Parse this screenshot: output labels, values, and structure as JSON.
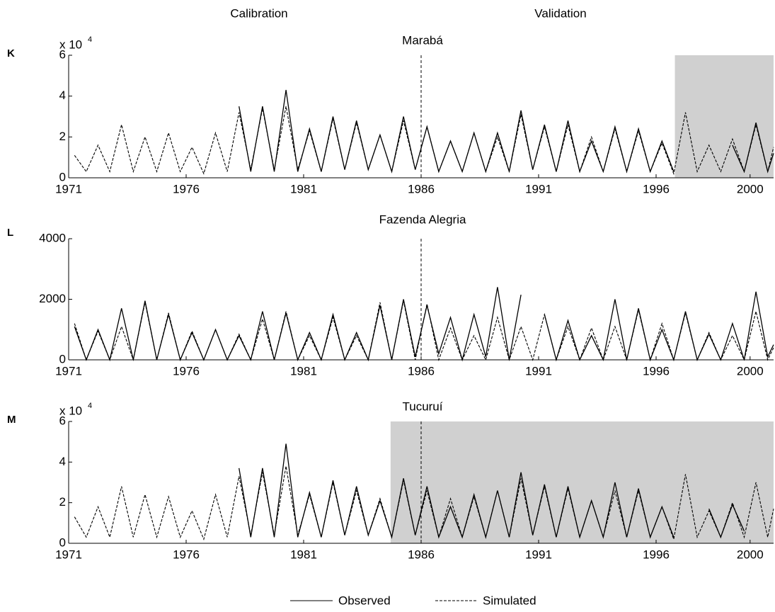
{
  "headers": [
    "Calibration",
    "Validation"
  ],
  "chart_data": [
    {
      "type": "line",
      "label": "K",
      "title": "Marabá",
      "y_scale": {
        "base": "x 10",
        "exponent": "4"
      },
      "x": [
        1971.25,
        1971.75,
        1972.25,
        1972.75,
        1973.25,
        1973.75,
        1974.25,
        1974.75,
        1975.25,
        1975.75,
        1976.25,
        1976.75,
        1977.25,
        1977.75,
        1978.25,
        1978.75,
        1979.25,
        1979.75,
        1980.25,
        1980.75,
        1981.25,
        1981.75,
        1982.25,
        1982.75,
        1983.25,
        1983.75,
        1984.25,
        1984.75,
        1985.25,
        1985.75,
        1986.25,
        1986.75,
        1987.25,
        1987.75,
        1988.25,
        1988.75,
        1989.25,
        1989.75,
        1990.25,
        1990.75,
        1991.25,
        1991.75,
        1992.25,
        1992.75,
        1993.25,
        1993.75,
        1994.25,
        1994.75,
        1995.25,
        1995.75,
        1996.25,
        1996.75,
        1997.25,
        1997.75,
        1998.25,
        1998.75,
        1999.25,
        1999.75,
        2000.25,
        2000.75,
        2001
      ],
      "series": [
        {
          "name": "Observed",
          "color": "#000000",
          "style": "solid",
          "values": [
            null,
            null,
            null,
            null,
            null,
            null,
            null,
            null,
            null,
            null,
            null,
            null,
            null,
            null,
            3.5,
            0.3,
            3.5,
            0.3,
            4.3,
            0.3,
            2.4,
            0.3,
            3.0,
            0.4,
            2.8,
            0.4,
            2.1,
            0.3,
            3.0,
            0.4,
            2.5,
            0.3,
            1.8,
            0.3,
            2.2,
            0.3,
            2.2,
            0.3,
            3.3,
            0.4,
            2.6,
            0.3,
            2.8,
            0.3,
            1.8,
            0.3,
            2.5,
            0.3,
            2.4,
            0.3,
            1.8,
            0.3,
            null,
            null,
            null,
            null,
            1.6,
            0.3,
            2.7,
            0.3,
            1.2
          ]
        },
        {
          "name": "Simulated",
          "color": "#000000",
          "style": "dashed",
          "values": [
            1.1,
            0.3,
            1.6,
            0.3,
            2.6,
            0.3,
            2.0,
            0.3,
            2.2,
            0.3,
            1.5,
            0.2,
            2.2,
            0.3,
            3.2,
            0.4,
            3.4,
            0.4,
            3.5,
            0.4,
            2.3,
            0.3,
            2.9,
            0.4,
            2.7,
            0.4,
            2.1,
            0.3,
            2.8,
            0.4,
            2.5,
            0.3,
            1.8,
            0.3,
            2.2,
            0.3,
            2.0,
            0.3,
            3.1,
            0.4,
            2.5,
            0.3,
            2.6,
            0.3,
            2.0,
            0.3,
            2.4,
            0.3,
            2.3,
            0.3,
            1.7,
            0.2,
            3.2,
            0.3,
            1.6,
            0.3,
            1.9,
            0.3,
            2.6,
            0.3,
            1.5
          ]
        }
      ],
      "xlim": [
        1971,
        2001
      ],
      "xticks": [
        1971,
        1976,
        1981,
        1986,
        1991,
        1996,
        2000
      ],
      "ylim": [
        0,
        6
      ],
      "yticks": [
        0,
        2,
        4,
        6
      ],
      "divider": 1986,
      "shaded": [
        1996.8,
        2001
      ]
    },
    {
      "type": "line",
      "label": "L",
      "title": "Fazenda Alegria",
      "x": [
        1971.25,
        1971.75,
        1972.25,
        1972.75,
        1973.25,
        1973.75,
        1974.25,
        1974.75,
        1975.25,
        1975.75,
        1976.25,
        1976.75,
        1977.25,
        1977.75,
        1978.25,
        1978.75,
        1979.25,
        1979.75,
        1980.25,
        1980.75,
        1981.25,
        1981.75,
        1982.25,
        1982.75,
        1983.25,
        1983.75,
        1984.25,
        1984.75,
        1985.25,
        1985.75,
        1986.25,
        1986.75,
        1987.25,
        1987.75,
        1988.25,
        1988.75,
        1989.25,
        1989.75,
        1990.25,
        1990.75,
        1991.25,
        1991.75,
        1992.25,
        1992.75,
        1993.25,
        1993.75,
        1994.25,
        1994.75,
        1995.25,
        1995.75,
        1996.25,
        1996.75,
        1997.25,
        1997.75,
        1998.25,
        1998.75,
        1999.25,
        1999.75,
        2000.25,
        2000.75,
        2001
      ],
      "series": [
        {
          "name": "Observed",
          "color": "#000000",
          "style": "solid",
          "values": [
            1100,
            0,
            1000,
            0,
            1700,
            0,
            1950,
            0,
            1500,
            0,
            900,
            0,
            1000,
            0,
            800,
            0,
            1600,
            0,
            1550,
            0,
            900,
            0,
            1500,
            0,
            900,
            0,
            1800,
            0,
            2000,
            100,
            1800,
            200,
            1400,
            0,
            1500,
            100,
            2400,
            0,
            2150,
            null,
            1500,
            0,
            1300,
            0,
            800,
            0,
            2000,
            0,
            1700,
            0,
            1000,
            0,
            1600,
            0,
            850,
            0,
            1200,
            0,
            2250,
            100,
            500
          ]
        },
        {
          "name": "Simulated",
          "color": "#000000",
          "style": "dashed",
          "values": [
            1200,
            0,
            950,
            0,
            1100,
            0,
            1900,
            0,
            1550,
            0,
            950,
            0,
            1000,
            0,
            850,
            0,
            1350,
            0,
            1600,
            0,
            800,
            0,
            1400,
            0,
            800,
            0,
            1900,
            0,
            1950,
            0,
            1850,
            0,
            1050,
            0,
            800,
            0,
            1400,
            0,
            1100,
            0,
            1500,
            0,
            1100,
            0,
            1050,
            0,
            1100,
            0,
            1650,
            0,
            1200,
            0,
            1550,
            0,
            900,
            0,
            800,
            0,
            1600,
            0,
            400
          ]
        }
      ],
      "xlim": [
        1971,
        2001
      ],
      "xticks": [
        1971,
        1976,
        1981,
        1986,
        1991,
        1996,
        2000
      ],
      "ylim": [
        0,
        4000
      ],
      "yticks": [
        0,
        2000,
        4000
      ],
      "divider": 1986
    },
    {
      "type": "line",
      "label": "M",
      "title": "Tucuruí",
      "y_scale": {
        "base": "x 10",
        "exponent": "4"
      },
      "x": [
        1971.25,
        1971.75,
        1972.25,
        1972.75,
        1973.25,
        1973.75,
        1974.25,
        1974.75,
        1975.25,
        1975.75,
        1976.25,
        1976.75,
        1977.25,
        1977.75,
        1978.25,
        1978.75,
        1979.25,
        1979.75,
        1980.25,
        1980.75,
        1981.25,
        1981.75,
        1982.25,
        1982.75,
        1983.25,
        1983.75,
        1984.25,
        1984.75,
        1985.25,
        1985.75,
        1986.25,
        1986.75,
        1987.25,
        1987.75,
        1988.25,
        1988.75,
        1989.25,
        1989.75,
        1990.25,
        1990.75,
        1991.25,
        1991.75,
        1992.25,
        1992.75,
        1993.25,
        1993.75,
        1994.25,
        1994.75,
        1995.25,
        1995.75,
        1996.25,
        1996.75,
        1997.25,
        1997.75,
        1998.25,
        1998.75,
        1999.25,
        1999.75,
        2000.25,
        2000.75,
        2001
      ],
      "series": [
        {
          "name": "Observed",
          "color": "#000000",
          "style": "solid",
          "values": [
            null,
            null,
            null,
            null,
            null,
            null,
            null,
            null,
            null,
            null,
            null,
            null,
            null,
            null,
            3.7,
            0.3,
            3.7,
            0.3,
            4.9,
            0.3,
            2.5,
            0.3,
            3.1,
            0.4,
            2.8,
            0.4,
            2.1,
            0.3,
            3.2,
            0.4,
            2.8,
            0.3,
            1.8,
            0.3,
            2.4,
            0.3,
            2.6,
            0.3,
            3.5,
            0.4,
            2.9,
            0.3,
            2.8,
            0.3,
            2.1,
            0.3,
            3.0,
            0.3,
            2.7,
            0.3,
            1.8,
            0.3,
            null,
            null,
            1.7,
            0.3,
            1.9,
            0.6,
            null,
            null,
            null
          ]
        },
        {
          "name": "Simulated",
          "color": "#000000",
          "style": "dashed",
          "values": [
            1.3,
            0.3,
            1.8,
            0.3,
            2.8,
            0.3,
            2.4,
            0.3,
            2.3,
            0.3,
            1.6,
            0.2,
            2.4,
            0.3,
            3.3,
            0.4,
            3.5,
            0.4,
            3.8,
            0.4,
            2.4,
            0.3,
            3.0,
            0.4,
            2.6,
            0.4,
            2.2,
            0.3,
            3.1,
            0.4,
            2.6,
            0.3,
            2.2,
            0.3,
            2.3,
            0.3,
            2.6,
            0.3,
            3.2,
            0.4,
            2.8,
            0.3,
            2.7,
            0.3,
            2.1,
            0.3,
            2.6,
            0.3,
            2.6,
            0.3,
            1.8,
            0.2,
            3.4,
            0.3,
            1.6,
            0.3,
            2.0,
            0.3,
            3.0,
            0.3,
            1.7
          ]
        }
      ],
      "xlim": [
        1971,
        2001
      ],
      "xticks": [
        1971,
        1976,
        1981,
        1986,
        1991,
        1996,
        2000
      ],
      "ylim": [
        0,
        6
      ],
      "yticks": [
        0,
        2,
        4,
        6
      ],
      "divider": 1986,
      "shaded": [
        1984.7,
        2001
      ]
    }
  ]
}
